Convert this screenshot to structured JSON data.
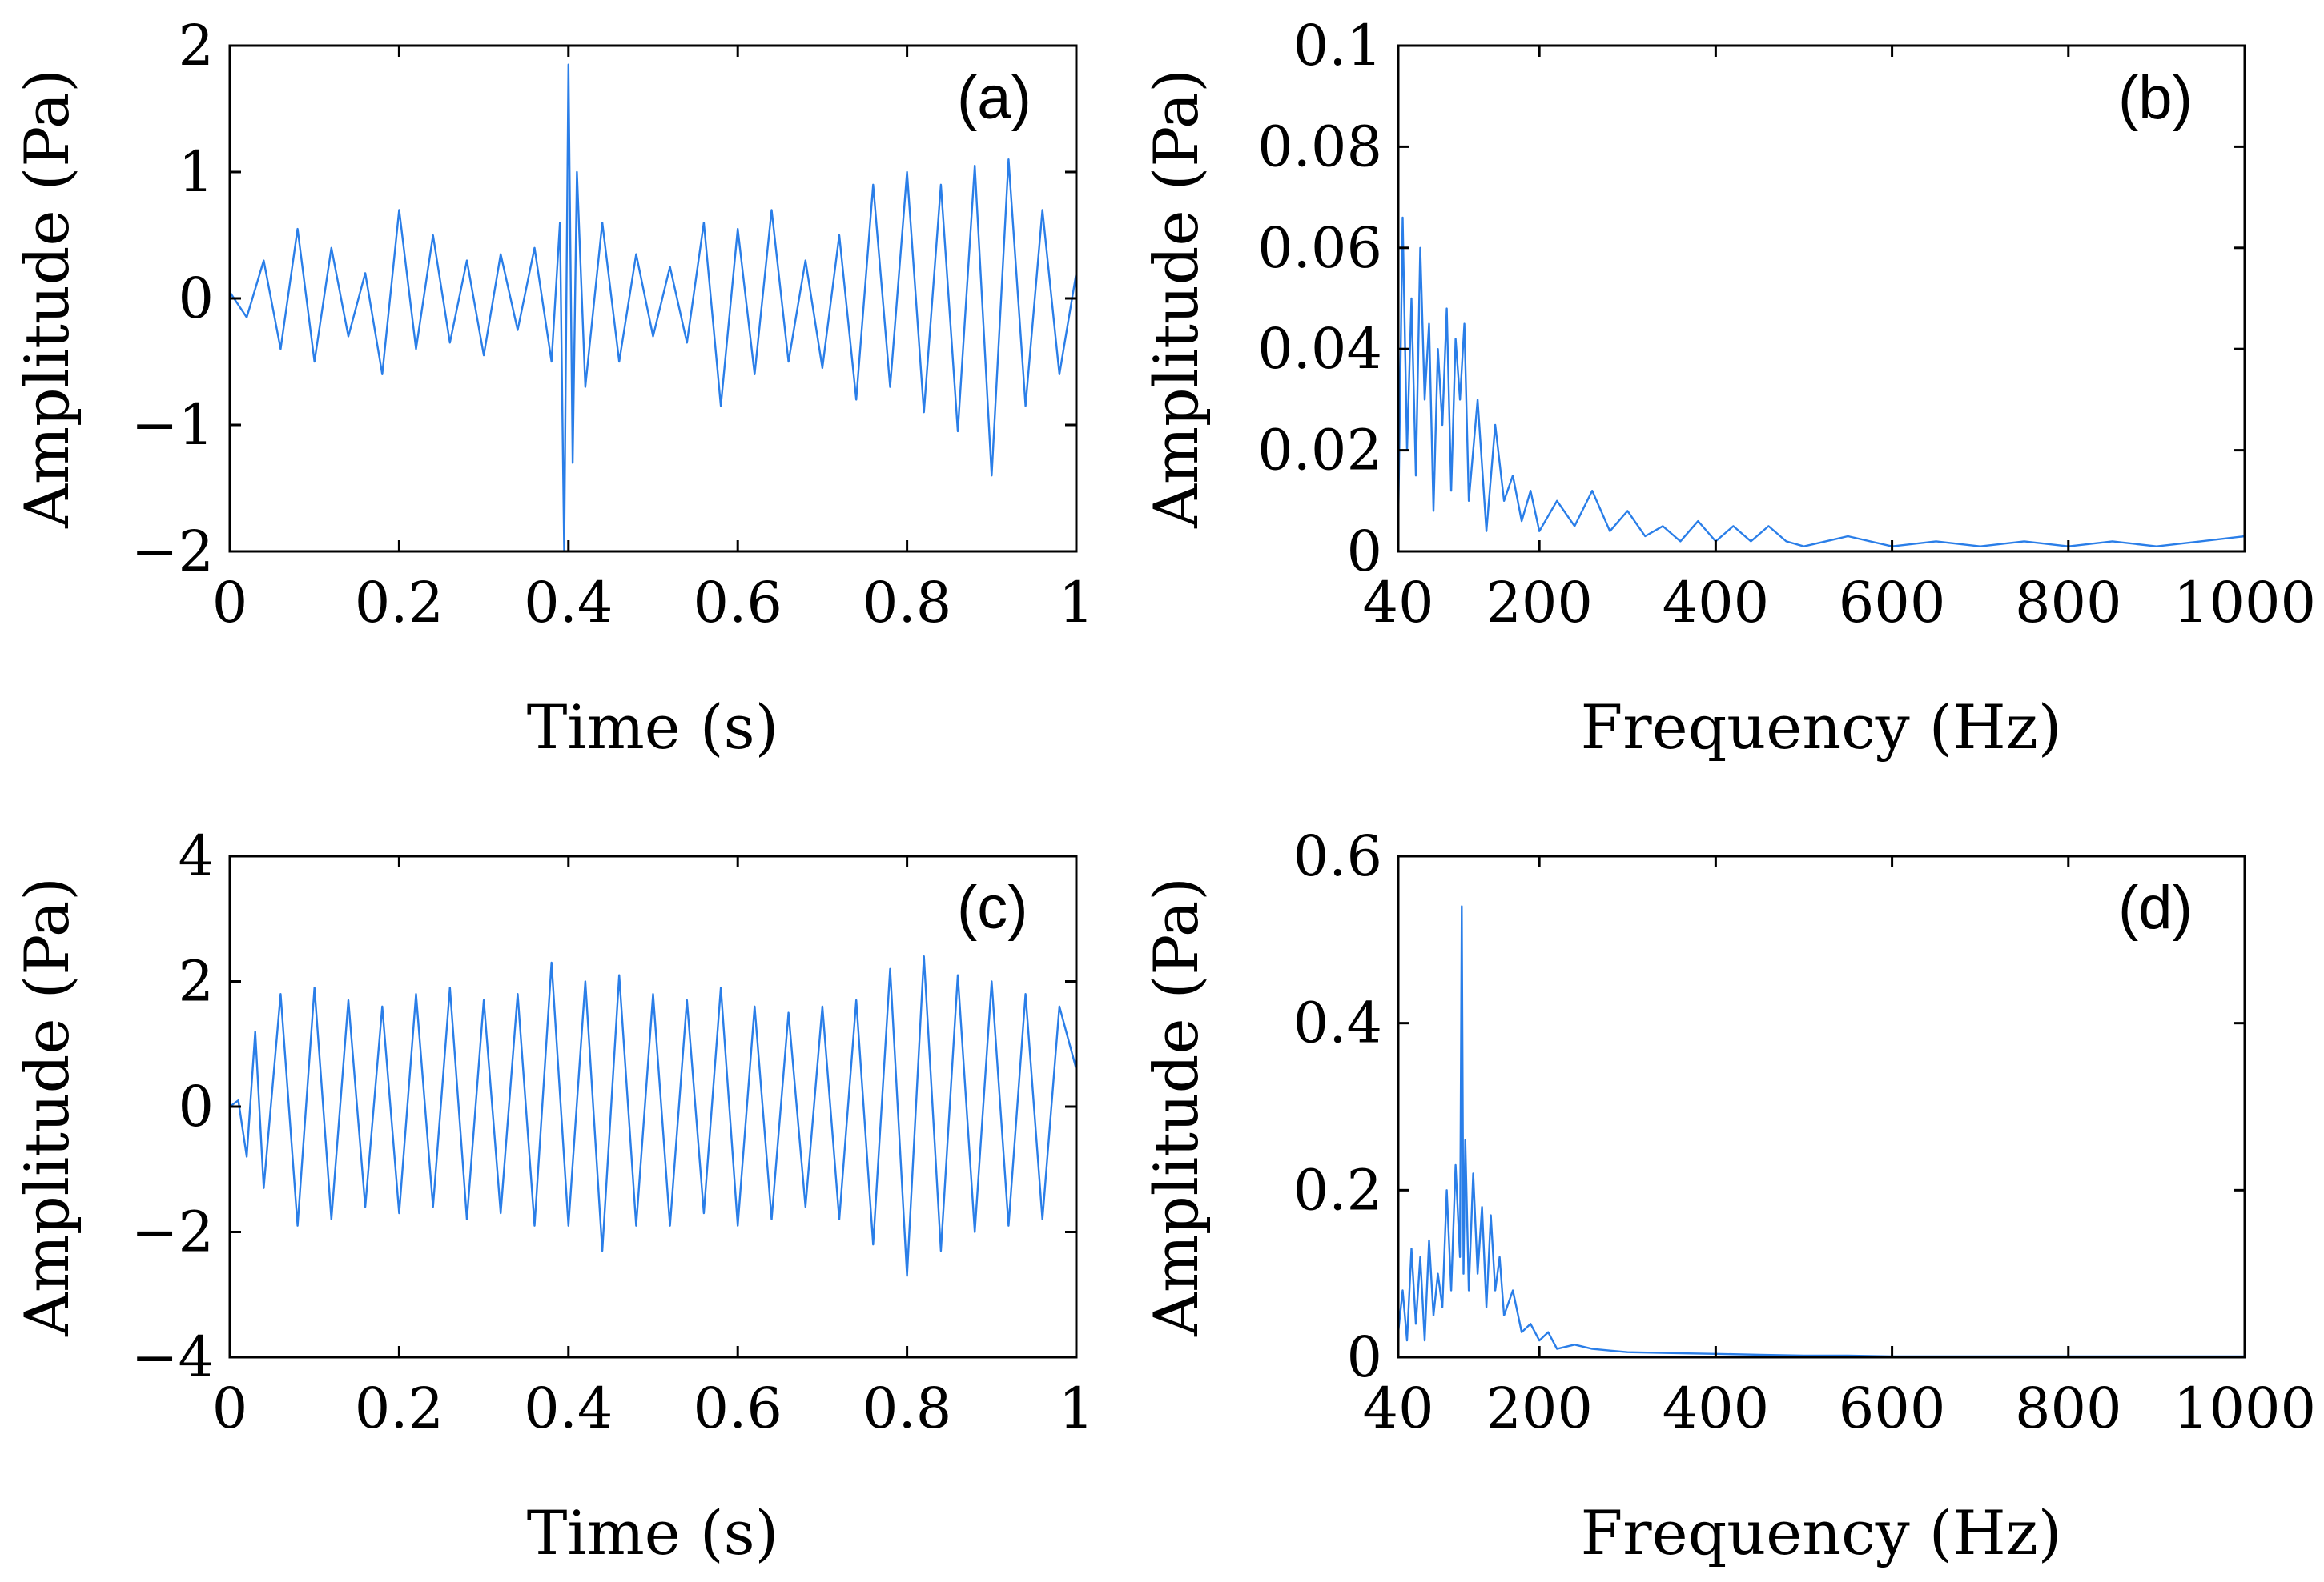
{
  "chart_data": [
    {
      "id": "a",
      "type": "line",
      "panel_label": "(a)",
      "xlabel": "Time (s)",
      "ylabel": "Amplitude (Pa)",
      "xlim": [
        0,
        1
      ],
      "ylim": [
        -2,
        2
      ],
      "xticks": [
        0,
        0.2,
        0.4,
        0.6,
        0.8,
        1
      ],
      "xticklabels": [
        "0",
        "0.2",
        "0.4",
        "0.6",
        "0.8",
        "1"
      ],
      "yticks": [
        -2,
        -1,
        0,
        1,
        2
      ],
      "yticklabels": [
        "−2",
        "−1",
        "0",
        "1",
        "2"
      ],
      "color": "#2a7ee8",
      "series": [
        {
          "x": [
            0,
            0.02,
            0.04,
            0.06,
            0.08,
            0.1,
            0.12,
            0.14,
            0.16,
            0.18,
            0.2,
            0.22,
            0.24,
            0.26,
            0.28,
            0.3,
            0.32,
            0.34,
            0.36,
            0.38,
            0.39,
            0.395,
            0.4,
            0.405,
            0.41,
            0.42,
            0.44,
            0.46,
            0.48,
            0.5,
            0.52,
            0.54,
            0.56,
            0.58,
            0.6,
            0.62,
            0.64,
            0.66,
            0.68,
            0.7,
            0.72,
            0.74,
            0.76,
            0.78,
            0.8,
            0.82,
            0.84,
            0.86,
            0.88,
            0.9,
            0.92,
            0.94,
            0.96,
            0.98,
            1.0
          ],
          "y": [
            0.05,
            -0.15,
            0.3,
            -0.4,
            0.55,
            -0.5,
            0.4,
            -0.3,
            0.2,
            -0.6,
            0.7,
            -0.4,
            0.5,
            -0.35,
            0.3,
            -0.45,
            0.35,
            -0.25,
            0.4,
            -0.5,
            0.6,
            -2.0,
            1.85,
            -1.3,
            1.0,
            -0.7,
            0.6,
            -0.5,
            0.35,
            -0.3,
            0.25,
            -0.35,
            0.6,
            -0.85,
            0.55,
            -0.6,
            0.7,
            -0.5,
            0.3,
            -0.55,
            0.5,
            -0.8,
            0.9,
            -0.7,
            1.0,
            -0.9,
            0.9,
            -1.05,
            1.05,
            -1.4,
            1.1,
            -0.85,
            0.7,
            -0.6,
            0.2
          ]
        }
      ]
    },
    {
      "id": "b",
      "type": "line",
      "panel_label": "(b)",
      "xlabel": "Frequency (Hz)",
      "ylabel": "Amplitude (Pa)",
      "xlim": [
        40,
        1000
      ],
      "ylim": [
        0,
        0.1
      ],
      "xticks": [
        40,
        200,
        400,
        600,
        800,
        1000
      ],
      "xticklabels": [
        "40",
        "200",
        "400",
        "600",
        "800",
        "1000"
      ],
      "yticks": [
        0,
        0.02,
        0.04,
        0.06,
        0.08,
        0.1
      ],
      "yticklabels": [
        "0",
        "0.02",
        "0.04",
        "0.06",
        "0.08",
        "0.1"
      ],
      "color": "#2a7ee8",
      "series": [
        {
          "x": [
            40,
            45,
            50,
            55,
            60,
            65,
            70,
            75,
            80,
            85,
            90,
            95,
            100,
            105,
            110,
            115,
            120,
            130,
            140,
            150,
            160,
            170,
            180,
            190,
            200,
            220,
            240,
            260,
            280,
            300,
            320,
            340,
            360,
            380,
            400,
            420,
            440,
            460,
            480,
            500,
            550,
            600,
            650,
            700,
            750,
            800,
            850,
            900,
            950,
            1000
          ],
          "y": [
            0.006,
            0.066,
            0.02,
            0.05,
            0.015,
            0.06,
            0.03,
            0.045,
            0.008,
            0.04,
            0.025,
            0.048,
            0.012,
            0.042,
            0.03,
            0.045,
            0.01,
            0.03,
            0.004,
            0.025,
            0.01,
            0.015,
            0.006,
            0.012,
            0.004,
            0.01,
            0.005,
            0.012,
            0.004,
            0.008,
            0.003,
            0.005,
            0.002,
            0.006,
            0.002,
            0.005,
            0.002,
            0.005,
            0.002,
            0.001,
            0.003,
            0.001,
            0.002,
            0.001,
            0.002,
            0.001,
            0.002,
            0.001,
            0.002,
            0.003
          ]
        }
      ]
    },
    {
      "id": "c",
      "type": "line",
      "panel_label": "(c)",
      "xlabel": "Time (s)",
      "ylabel": "Amplitude (Pa)",
      "xlim": [
        0,
        1
      ],
      "ylim": [
        -4,
        4
      ],
      "xticks": [
        0,
        0.2,
        0.4,
        0.6,
        0.8,
        1
      ],
      "xticklabels": [
        "0",
        "0.2",
        "0.4",
        "0.6",
        "0.8",
        "1"
      ],
      "yticks": [
        -4,
        -2,
        0,
        2,
        4
      ],
      "yticklabels": [
        "−4",
        "−2",
        "0",
        "2",
        "4"
      ],
      "color": "#2a7ee8",
      "series": [
        {
          "x": [
            0,
            0.01,
            0.02,
            0.03,
            0.04,
            0.06,
            0.08,
            0.1,
            0.12,
            0.14,
            0.16,
            0.18,
            0.2,
            0.22,
            0.24,
            0.26,
            0.28,
            0.3,
            0.32,
            0.34,
            0.36,
            0.38,
            0.4,
            0.42,
            0.44,
            0.46,
            0.48,
            0.5,
            0.52,
            0.54,
            0.56,
            0.58,
            0.6,
            0.62,
            0.64,
            0.66,
            0.68,
            0.7,
            0.72,
            0.74,
            0.76,
            0.78,
            0.8,
            0.82,
            0.84,
            0.86,
            0.88,
            0.9,
            0.92,
            0.94,
            0.96,
            0.98,
            1.0
          ],
          "y": [
            0,
            0.1,
            -0.8,
            1.2,
            -1.3,
            1.8,
            -1.9,
            1.9,
            -1.8,
            1.7,
            -1.6,
            1.6,
            -1.7,
            1.8,
            -1.6,
            1.9,
            -1.8,
            1.7,
            -1.7,
            1.8,
            -1.9,
            2.3,
            -1.9,
            2.0,
            -2.3,
            2.1,
            -1.9,
            1.8,
            -1.9,
            1.7,
            -1.7,
            1.9,
            -1.9,
            1.6,
            -1.8,
            1.5,
            -1.6,
            1.6,
            -1.8,
            1.7,
            -2.2,
            2.2,
            -2.7,
            2.4,
            -2.3,
            2.1,
            -2.0,
            2.0,
            -1.9,
            1.8,
            -1.8,
            1.6,
            0.6
          ]
        }
      ]
    },
    {
      "id": "d",
      "type": "line",
      "panel_label": "(d)",
      "xlabel": "Frequency (Hz)",
      "ylabel": "Amplitude (Pa)",
      "xlim": [
        40,
        1000
      ],
      "ylim": [
        0,
        0.6
      ],
      "xticks": [
        40,
        200,
        400,
        600,
        800,
        1000
      ],
      "xticklabels": [
        "40",
        "200",
        "400",
        "600",
        "800",
        "1000"
      ],
      "yticks": [
        0,
        0.2,
        0.4,
        0.6
      ],
      "yticklabels": [
        "0",
        "0.2",
        "0.4",
        "0.6"
      ],
      "color": "#2a7ee8",
      "series": [
        {
          "x": [
            40,
            45,
            50,
            55,
            60,
            65,
            70,
            75,
            80,
            85,
            90,
            95,
            100,
            105,
            110,
            112,
            114,
            116,
            120,
            125,
            130,
            135,
            140,
            145,
            150,
            155,
            160,
            170,
            180,
            190,
            200,
            210,
            220,
            240,
            260,
            280,
            300,
            350,
            400,
            450,
            500,
            550,
            600,
            700,
            800,
            900,
            1000
          ],
          "y": [
            0.03,
            0.08,
            0.02,
            0.13,
            0.04,
            0.12,
            0.02,
            0.14,
            0.05,
            0.1,
            0.06,
            0.2,
            0.08,
            0.23,
            0.12,
            0.54,
            0.1,
            0.26,
            0.08,
            0.22,
            0.1,
            0.18,
            0.06,
            0.17,
            0.08,
            0.12,
            0.05,
            0.08,
            0.03,
            0.04,
            0.02,
            0.03,
            0.01,
            0.015,
            0.01,
            0.008,
            0.006,
            0.005,
            0.004,
            0.003,
            0.002,
            0.002,
            0.001,
            0.001,
            0.001,
            0.001,
            0.001
          ]
        }
      ]
    }
  ]
}
